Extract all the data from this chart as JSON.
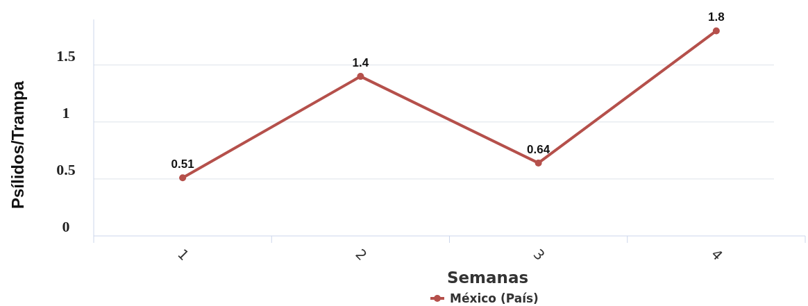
{
  "chart_data": {
    "type": "line",
    "xlabel": "Semanas",
    "ylabel": "Psílidos/Trampa",
    "categories": [
      "1",
      "2",
      "3",
      "4"
    ],
    "series": [
      {
        "name": "México (País)",
        "color": "#b5504b",
        "values": [
          0.51,
          1.4,
          0.64,
          1.8
        ]
      }
    ],
    "ylim": [
      0,
      1.9
    ],
    "yticks": [
      0,
      0.5,
      1,
      1.5
    ],
    "grid": "y",
    "legend": "bottom",
    "marker": "circle",
    "line_style": "solid",
    "data_labels": true
  }
}
